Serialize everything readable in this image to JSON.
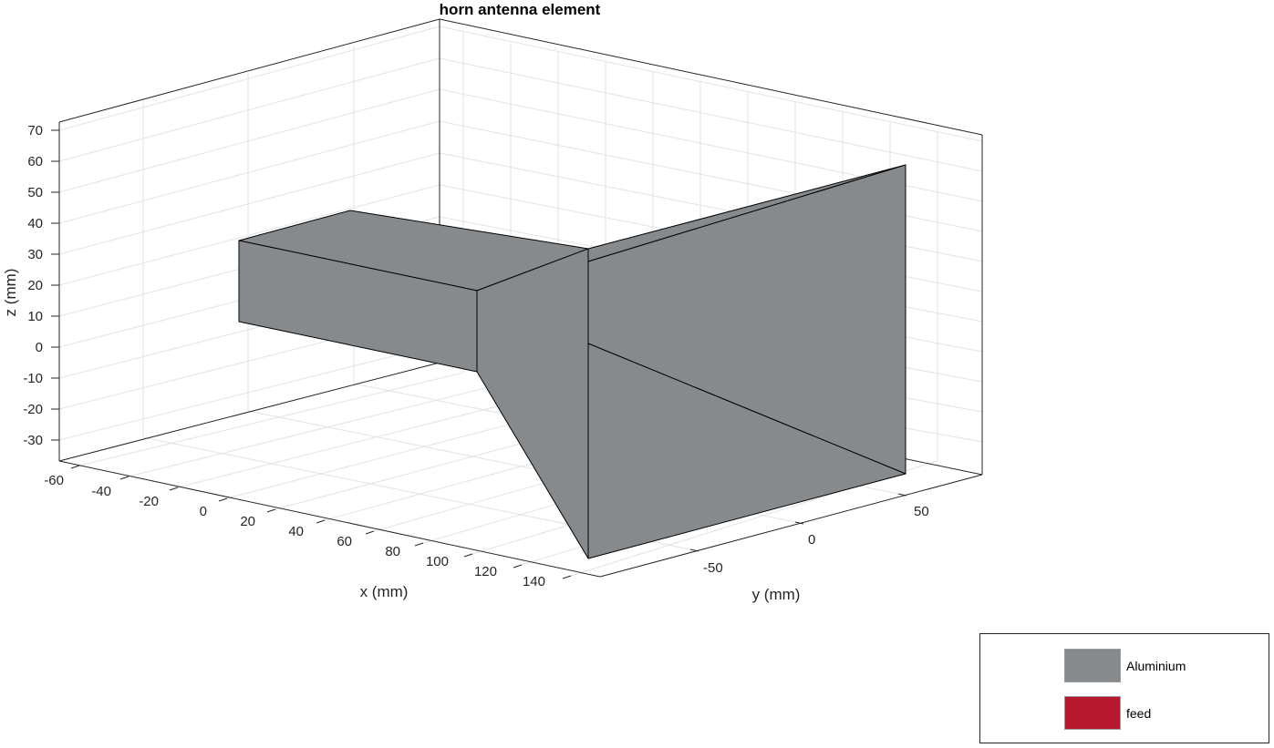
{
  "figure": {
    "title": "horn antenna element",
    "xlabel": "x (mm)",
    "ylabel": "y (mm)",
    "zlabel": "z (mm)"
  },
  "axes": {
    "x_ticks": [
      "-60",
      "-40",
      "-20",
      "0",
      "20",
      "40",
      "60",
      "80",
      "100",
      "120",
      "140"
    ],
    "y_ticks": [
      "-50",
      "0",
      "50"
    ],
    "z_ticks": [
      "70",
      "60",
      "50",
      "40",
      "30",
      "20",
      "10",
      "0",
      "-10",
      "-20",
      "-30"
    ],
    "grid": true
  },
  "legend": {
    "placement": "bottom-right",
    "items": [
      {
        "label": "Aluminium",
        "color": "#868A8D"
      },
      {
        "label": "feed",
        "color": "#B8182E"
      }
    ]
  },
  "colors": {
    "metal": "#868A8D",
    "edge": "#000000",
    "grid": "#e3e3e3",
    "axis": "#262626"
  }
}
